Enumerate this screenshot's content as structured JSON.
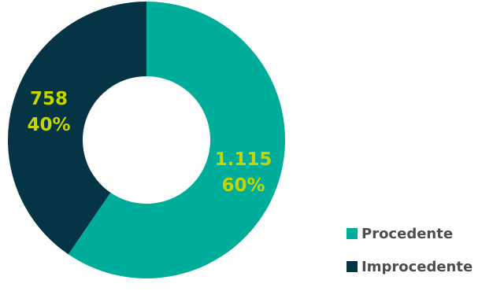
{
  "chart_data": {
    "type": "pie",
    "donut": true,
    "categories": [
      "Procedente",
      "Improcedente"
    ],
    "values": [
      1115,
      758
    ],
    "value_labels": [
      "1.115",
      "758"
    ],
    "percent_labels": [
      "60%",
      "40%"
    ],
    "colors": [
      "#00ad9a",
      "#053544"
    ],
    "label_color": "#c4d600",
    "legend_text_color": "#4d4d4d",
    "legend_position": "bottom-right",
    "start_angle": "top",
    "direction": "clockwise"
  }
}
